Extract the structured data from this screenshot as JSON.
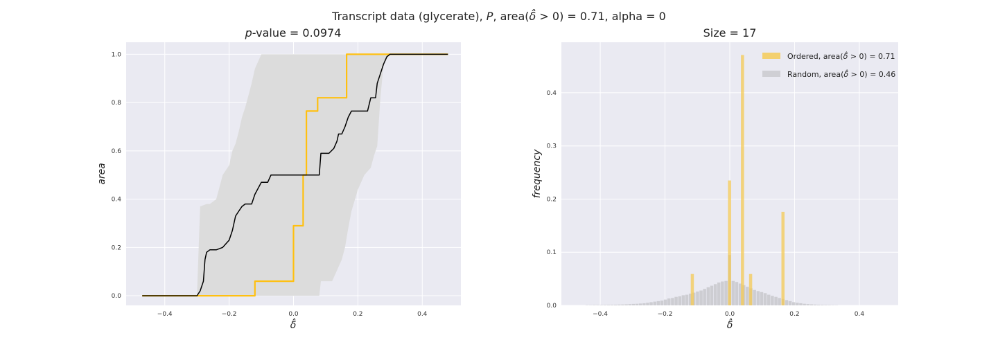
{
  "figure": {
    "suptitle_pre": "Transcript data (glycerate), ",
    "suptitle_p": "P",
    "suptitle_mid": ", area(",
    "suptitle_delta": "δ̂",
    "suptitle_post": " > 0) = 0.71, alpha = 0"
  },
  "colors": {
    "ordered": "#ffc010",
    "random_band": "#dcdcdc",
    "random_line": "#000000",
    "panel_bg": "#eaeaf2",
    "ordered_hist": "#f5c94e",
    "random_hist": "#c8c8cc"
  },
  "chart_data": [
    {
      "type": "line",
      "title_p": "p",
      "title_rest": "-value = 0.0974",
      "xlabel": "δ̂",
      "ylabel": "area",
      "xlim": [
        -0.52,
        0.52
      ],
      "ylim": [
        -0.04,
        1.05
      ],
      "xticks": [
        -0.4,
        -0.2,
        0.0,
        0.2,
        0.4
      ],
      "xtick_labels": [
        "−0.4",
        "−0.2",
        "0.0",
        "0.2",
        "0.4"
      ],
      "yticks": [
        0.0,
        0.2,
        0.4,
        0.6,
        0.8,
        1.0
      ],
      "ytick_labels": [
        "0.0",
        "0.2",
        "0.4",
        "0.6",
        "0.8",
        "1.0"
      ],
      "grid": true,
      "series": [
        {
          "role": "ordered",
          "x": [
            -0.47,
            -0.12,
            -0.12,
            -0.06,
            -0.06,
            0.0,
            0.0,
            0.03,
            0.03,
            0.04,
            0.04,
            0.06,
            0.06,
            0.075,
            0.075,
            0.165,
            0.165,
            0.48
          ],
          "y": [
            0,
            0,
            0.06,
            0.06,
            0.06,
            0.06,
            0.29,
            0.29,
            0.5,
            0.5,
            0.765,
            0.765,
            0.765,
            0.765,
            0.82,
            0.82,
            1.0,
            1.0
          ]
        },
        {
          "role": "random-mean",
          "x": [
            -0.47,
            -0.3,
            -0.29,
            -0.28,
            -0.275,
            -0.27,
            -0.26,
            -0.24,
            -0.22,
            -0.2,
            -0.19,
            -0.18,
            -0.17,
            -0.16,
            -0.15,
            -0.13,
            -0.12,
            -0.1,
            -0.09,
            -0.08,
            -0.07,
            -0.06,
            -0.04,
            0.08,
            0.085,
            0.11,
            0.125,
            0.135,
            0.14,
            0.15,
            0.16,
            0.17,
            0.18,
            0.19,
            0.23,
            0.24,
            0.255,
            0.26,
            0.27,
            0.28,
            0.29,
            0.3,
            0.48
          ],
          "y": [
            0,
            0,
            0.02,
            0.06,
            0.15,
            0.18,
            0.19,
            0.19,
            0.2,
            0.23,
            0.27,
            0.33,
            0.35,
            0.37,
            0.38,
            0.38,
            0.42,
            0.47,
            0.47,
            0.47,
            0.5,
            0.5,
            0.5,
            0.5,
            0.59,
            0.59,
            0.61,
            0.64,
            0.67,
            0.67,
            0.7,
            0.74,
            0.765,
            0.765,
            0.765,
            0.82,
            0.82,
            0.88,
            0.92,
            0.96,
            0.99,
            1.0,
            1.0
          ]
        }
      ],
      "band": {
        "x": [
          -0.47,
          -0.3,
          -0.29,
          -0.27,
          -0.26,
          -0.24,
          -0.23,
          -0.22,
          -0.2,
          -0.19,
          -0.18,
          -0.17,
          -0.16,
          -0.15,
          -0.14,
          -0.13,
          -0.12,
          -0.1,
          -0.08,
          -0.06,
          -0.04,
          0.0,
          0.04,
          0.08,
          0.085,
          0.1,
          0.12,
          0.15,
          0.16,
          0.17,
          0.18,
          0.2,
          0.22,
          0.24,
          0.25,
          0.26,
          0.27,
          0.28,
          0.3,
          0.48
        ],
        "lower": [
          0,
          0,
          0,
          0,
          0,
          0,
          0,
          0,
          0,
          0,
          0,
          0,
          0,
          0,
          0,
          0,
          0,
          0,
          0,
          0,
          0,
          0,
          0,
          0,
          0.06,
          0.06,
          0.06,
          0.15,
          0.2,
          0.28,
          0.35,
          0.44,
          0.5,
          0.53,
          0.58,
          0.62,
          0.82,
          0.96,
          1.0,
          1.0
        ],
        "upper": [
          0,
          0,
          0.37,
          0.38,
          0.38,
          0.4,
          0.45,
          0.5,
          0.54,
          0.6,
          0.63,
          0.68,
          0.74,
          0.78,
          0.83,
          0.88,
          0.94,
          1.0,
          1.0,
          1.0,
          1.0,
          1.0,
          1.0,
          1.0,
          1.0,
          1.0,
          1.0,
          1.0,
          1.0,
          1.0,
          1.0,
          1.0,
          1.0,
          1.0,
          1.0,
          1.0,
          1.0,
          1.0,
          1.0,
          1.0
        ]
      }
    },
    {
      "type": "bar",
      "title": "Size = 17",
      "xlabel": "δ̂",
      "ylabel": "frequency",
      "xlim": [
        -0.52,
        0.52
      ],
      "ylim": [
        0,
        0.495
      ],
      "xticks": [
        -0.4,
        -0.2,
        0.0,
        0.2,
        0.4
      ],
      "xtick_labels": [
        "−0.4",
        "−0.2",
        "0.0",
        "0.2",
        "0.4"
      ],
      "yticks": [
        0.0,
        0.1,
        0.2,
        0.3,
        0.4
      ],
      "ytick_labels": [
        "0.0",
        "0.1",
        "0.2",
        "0.3",
        "0.4"
      ],
      "grid": true,
      "legend_position": "top-right",
      "legend": [
        {
          "role": "ordered",
          "pre": "Ordered, area(",
          "delta": "δ̂",
          "post": " > 0) = 0.71"
        },
        {
          "role": "random",
          "pre": "Random, area(",
          "delta": "δ̂",
          "post": " > 0) = 0.46"
        }
      ],
      "bar_width": 0.011,
      "ordered_bars": {
        "x": [
          -0.115,
          0.0,
          0.04,
          0.065,
          0.165
        ],
        "values": [
          0.059,
          0.235,
          0.471,
          0.059,
          0.176
        ]
      },
      "random_bars": {
        "x": [
          -0.44,
          -0.429,
          -0.418,
          -0.407,
          -0.396,
          -0.385,
          -0.374,
          -0.363,
          -0.352,
          -0.341,
          -0.33,
          -0.319,
          -0.308,
          -0.297,
          -0.286,
          -0.275,
          -0.264,
          -0.253,
          -0.242,
          -0.231,
          -0.22,
          -0.209,
          -0.198,
          -0.187,
          -0.176,
          -0.165,
          -0.154,
          -0.143,
          -0.132,
          -0.121,
          -0.11,
          -0.099,
          -0.088,
          -0.077,
          -0.066,
          -0.055,
          -0.044,
          -0.033,
          -0.022,
          -0.011,
          0.0,
          0.011,
          0.022,
          0.033,
          0.044,
          0.055,
          0.066,
          0.077,
          0.088,
          0.099,
          0.11,
          0.121,
          0.132,
          0.143,
          0.154,
          0.165,
          0.176,
          0.187,
          0.198,
          0.209,
          0.22,
          0.231,
          0.242,
          0.253,
          0.264,
          0.275,
          0.286,
          0.297,
          0.308,
          0.319,
          0.33
        ],
        "values": [
          0.0005,
          0.0005,
          0.0006,
          0.0007,
          0.0008,
          0.0009,
          0.001,
          0.0012,
          0.0013,
          0.0015,
          0.0017,
          0.002,
          0.0023,
          0.0027,
          0.003,
          0.0035,
          0.004,
          0.005,
          0.006,
          0.007,
          0.008,
          0.009,
          0.011,
          0.013,
          0.014,
          0.016,
          0.017,
          0.019,
          0.02,
          0.022,
          0.024,
          0.026,
          0.028,
          0.031,
          0.034,
          0.037,
          0.04,
          0.043,
          0.045,
          0.046,
          0.095,
          0.046,
          0.044,
          0.041,
          0.038,
          0.035,
          0.032,
          0.029,
          0.027,
          0.025,
          0.023,
          0.02,
          0.018,
          0.016,
          0.014,
          0.012,
          0.01,
          0.008,
          0.006,
          0.005,
          0.004,
          0.003,
          0.0025,
          0.002,
          0.0015,
          0.0012,
          0.001,
          0.0008,
          0.0006,
          0.0005,
          0.0004
        ]
      }
    }
  ]
}
